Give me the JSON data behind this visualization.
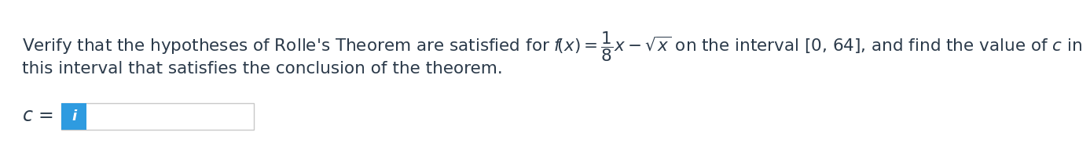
{
  "text_line1_plain": "Verify that the hypotheses of Rolle’s Theorem are satisfied for ",
  "text_line1_math": "$f\\!\\left( x \\right) = \\dfrac{1}{8}x - \\sqrt{x}$",
  "text_line1_end": " on the interval [0, 64], and find the value of $c$ in",
  "text_line2": "this interval that satisfies the conclusion of the theorem.",
  "label_c": "$c$",
  "icon_color": "#2e9be0",
  "icon_text": "i",
  "box_border_color": "#c8c8c8",
  "box_fill_color": "#ffffff",
  "background_color": "#ffffff",
  "text_color": "#2b3a4a",
  "font_size_main": 15.5,
  "font_size_label": 16
}
